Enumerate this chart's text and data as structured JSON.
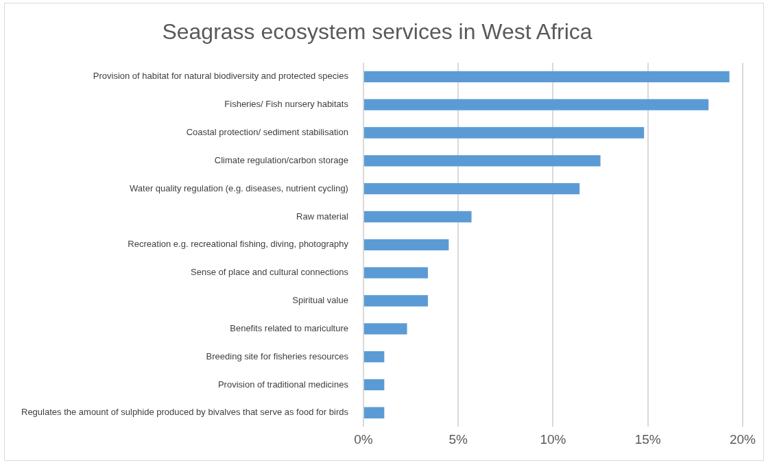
{
  "chart_data": {
    "type": "bar",
    "orientation": "horizontal",
    "title": "Seagrass ecosystem services in West Africa",
    "categories": [
      "Provision of habitat for natural biodiversity and protected species",
      "Fisheries/ Fish nursery habitats",
      "Coastal protection/ sediment stabilisation",
      "Climate regulation/carbon storage",
      "Water quality regulation (e.g. diseases, nutrient cycling)",
      "Raw material",
      "Recreation e.g. recreational fishing, diving, photography",
      "Sense of place and cultural connections",
      "Spiritual value",
      "Benefits related to mariculture",
      "Breeding site for fisheries resources",
      "Provision of traditional medicines",
      "Regulates the amount of sulphide produced by bivalves that serve as food for birds"
    ],
    "values": [
      19.3,
      18.2,
      14.8,
      12.5,
      11.4,
      5.7,
      4.5,
      3.4,
      3.4,
      2.3,
      1.1,
      1.1,
      1.1
    ],
    "color": "#5b9bd5",
    "xlim": [
      0,
      20
    ],
    "xticks": [
      {
        "value": 0,
        "label": "0%"
      },
      {
        "value": 5,
        "label": "5%"
      },
      {
        "value": 10,
        "label": "10%"
      },
      {
        "value": 15,
        "label": "15%"
      },
      {
        "value": 20,
        "label": "20%"
      }
    ],
    "grid": "x",
    "legend": false
  }
}
